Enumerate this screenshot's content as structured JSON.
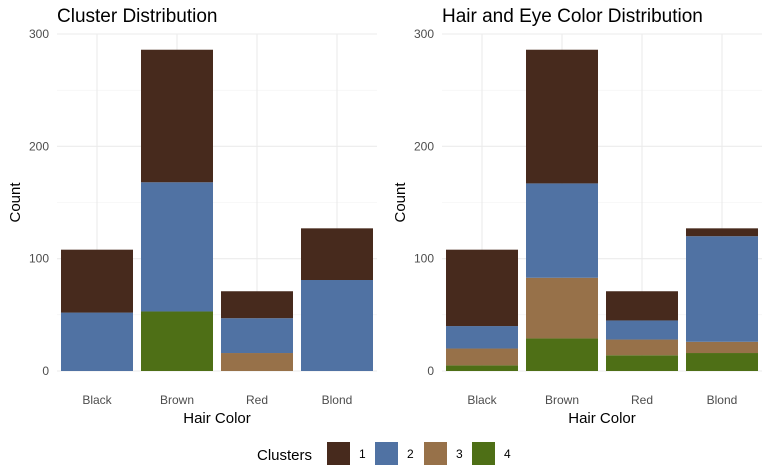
{
  "legend": {
    "title": "Clusters",
    "entries": [
      {
        "label": "1",
        "color": "#472a1d"
      },
      {
        "label": "2",
        "color": "#5072a3"
      },
      {
        "label": "3",
        "color": "#977149"
      },
      {
        "label": "4",
        "color": "#4e6f16"
      }
    ]
  },
  "chart_data": [
    {
      "type": "bar",
      "stacked": true,
      "title": "Cluster Distribution",
      "xlabel": "Hair Color",
      "ylabel": "Count",
      "categories": [
        "Black",
        "Brown",
        "Red",
        "Blond"
      ],
      "ylim": [
        0,
        300
      ],
      "yticks": [
        0,
        100,
        200,
        300
      ],
      "grid": true,
      "series": [
        {
          "name": "4",
          "color": "#4e6f16",
          "values": [
            0,
            53,
            0,
            0
          ]
        },
        {
          "name": "3",
          "color": "#977149",
          "values": [
            0,
            0,
            16,
            0
          ]
        },
        {
          "name": "2",
          "color": "#5072a3",
          "values": [
            52,
            115,
            31,
            81
          ]
        },
        {
          "name": "1",
          "color": "#472a1d",
          "values": [
            56,
            118,
            24,
            46
          ]
        }
      ]
    },
    {
      "type": "bar",
      "stacked": true,
      "title": "Hair and Eye Color Distribution",
      "xlabel": "Hair Color",
      "ylabel": "Count",
      "categories": [
        "Black",
        "Brown",
        "Red",
        "Blond"
      ],
      "ylim": [
        0,
        300
      ],
      "yticks": [
        0,
        100,
        200,
        300
      ],
      "grid": true,
      "series": [
        {
          "name": "4",
          "color": "#4e6f16",
          "values": [
            5,
            29,
            14,
            16
          ]
        },
        {
          "name": "3",
          "color": "#977149",
          "values": [
            15,
            54,
            14,
            10
          ]
        },
        {
          "name": "2",
          "color": "#5072a3",
          "values": [
            20,
            84,
            17,
            94
          ]
        },
        {
          "name": "1",
          "color": "#472a1d",
          "values": [
            68,
            119,
            26,
            7
          ]
        }
      ]
    }
  ]
}
